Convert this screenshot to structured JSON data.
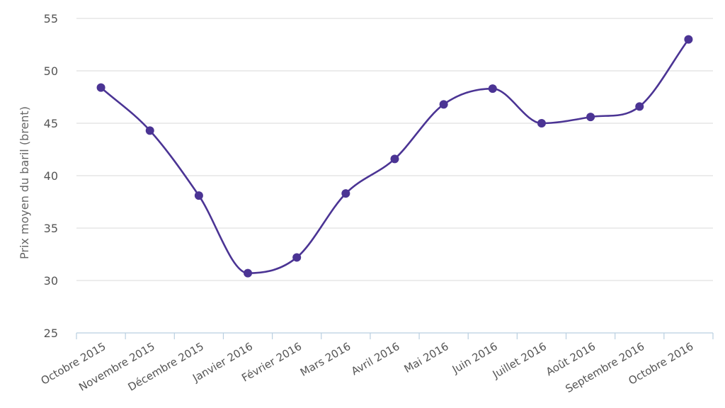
{
  "chart_data": {
    "type": "line",
    "title": "",
    "xlabel": "",
    "ylabel": "Prix moyen du baril (brent)",
    "categories": [
      "Octobre 2015",
      "Novembre 2015",
      "Décembre 2015",
      "Janvier 2016",
      "Février 2016",
      "Mars 2016",
      "Avril 2016",
      "Mai 2016",
      "Juin 2016",
      "Juillet 2016",
      "Août 2016",
      "Septembre 2016",
      "Octobre 2016"
    ],
    "series": [
      {
        "values": [
          48.4,
          44.3,
          38.1,
          30.7,
          32.2,
          38.3,
          41.6,
          46.8,
          48.3,
          45.0,
          45.6,
          46.6,
          53.0
        ],
        "color": "#4b3494"
      }
    ],
    "ylim": [
      25,
      55
    ],
    "yticks": [
      25,
      30,
      35,
      40,
      45,
      50,
      55
    ],
    "grid": true,
    "legend": "none"
  }
}
